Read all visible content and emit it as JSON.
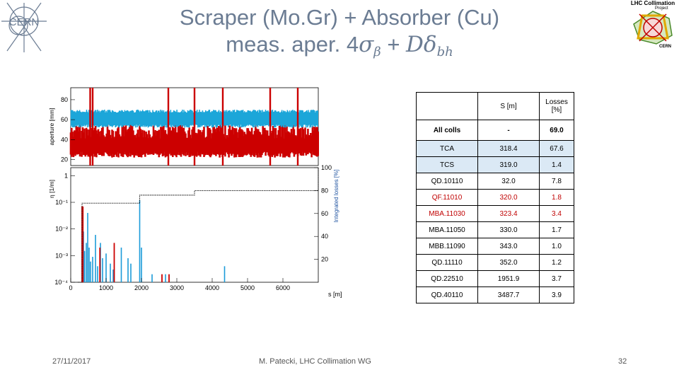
{
  "header": {
    "title_line1": "Scraper (Mo.Gr) + Absorber (Cu)",
    "title_line2": "meas. aper. 4",
    "title_math_sigma": "σ",
    "title_math_beta": "β",
    "title_math_plus": " + ",
    "title_math_D": "Dδ",
    "title_math_bh": "bh"
  },
  "logos": {
    "cern": "CERN",
    "collimation_line1": "LHC Collimation",
    "collimation_line2": "Project",
    "collimation_line3": "CERN"
  },
  "chart_data": [
    {
      "type": "line",
      "panel": "top",
      "ylabel": "aperture [mm]",
      "y_ticks": [
        20,
        40,
        60,
        80
      ],
      "ylim": [
        14,
        92
      ],
      "xlim": [
        0,
        7000
      ],
      "series": [
        {
          "color": "#1ca6d9",
          "description_note": "",
          "band": [
            52,
            70
          ]
        },
        {
          "color": "#cc0000",
          "band": [
            22,
            55
          ]
        }
      ],
      "vertical_spikes_red_x": [
        550,
        620,
        2760,
        3500,
        4300,
        5640,
        6420
      ]
    },
    {
      "type": "bar",
      "panel": "bottom",
      "ylabel": "η [1/m]",
      "y2label": "Integrated losses [%]",
      "xlabel": "s [m]",
      "x_ticks": [
        0,
        1000,
        2000,
        3000,
        4000,
        5000,
        6000
      ],
      "y_ticks": [
        "1",
        "10⁻¹",
        "10⁻²",
        "10⁻³",
        "10⁻⁴"
      ],
      "y2_ticks": [
        "100",
        "80",
        "60",
        "40",
        "20"
      ],
      "ylim": [
        0.0001,
        2
      ],
      "y2lim": [
        0,
        100
      ],
      "xlim": [
        0,
        7000
      ],
      "bars_blue": [
        {
          "x": 330,
          "v": 0.05
        },
        {
          "x": 360,
          "v": 0.008
        },
        {
          "x": 390,
          "v": 0.0015
        },
        {
          "x": 440,
          "v": 0.003
        },
        {
          "x": 480,
          "v": 0.04
        },
        {
          "x": 520,
          "v": 0.002
        },
        {
          "x": 560,
          "v": 0.0006
        },
        {
          "x": 620,
          "v": 0.0009
        },
        {
          "x": 700,
          "v": 0.006
        },
        {
          "x": 760,
          "v": 0.0004
        },
        {
          "x": 840,
          "v": 0.003
        },
        {
          "x": 900,
          "v": 0.0008
        },
        {
          "x": 1000,
          "v": 0.0012
        },
        {
          "x": 1120,
          "v": 0.0005
        },
        {
          "x": 1200,
          "v": 0.0003
        },
        {
          "x": 1430,
          "v": 0.002
        },
        {
          "x": 1620,
          "v": 0.0008
        },
        {
          "x": 1700,
          "v": 0.0005
        },
        {
          "x": 1950,
          "v": 0.12
        },
        {
          "x": 2000,
          "v": 0.002
        },
        {
          "x": 2300,
          "v": 0.0002
        },
        {
          "x": 2680,
          "v": 0.0002
        },
        {
          "x": 4350,
          "v": 0.0004
        }
      ],
      "bars_red": [
        {
          "x": 320,
          "v": 0.07
        },
        {
          "x": 345,
          "v": 0.07
        },
        {
          "x": 825,
          "v": 0.002
        },
        {
          "x": 1230,
          "v": 0.003
        },
        {
          "x": 2580,
          "v": 0.0002
        },
        {
          "x": 2780,
          "v": 0.0002
        }
      ],
      "integrated_losses": [
        {
          "x": 200,
          "y": 0
        },
        {
          "x": 320,
          "y": 69
        },
        {
          "x": 1950,
          "y": 76
        },
        {
          "x": 3500,
          "y": 80
        },
        {
          "x": 7000,
          "y": 100
        }
      ]
    }
  ],
  "table": {
    "headers": [
      "",
      "S [m]",
      "Losses [%]"
    ],
    "rows": [
      {
        "name": "All colls",
        "s": "-",
        "loss": "69.0",
        "style": "bold"
      },
      {
        "name": "TCA",
        "s": "318.4",
        "loss": "67.6",
        "style": "shade"
      },
      {
        "name": "TCS",
        "s": "319.0",
        "loss": "1.4",
        "style": "shade"
      },
      {
        "name": "QD.10110",
        "s": "32.0",
        "loss": "7.8",
        "style": ""
      },
      {
        "name": "QF.11010",
        "s": "320.0",
        "loss": "1.8",
        "style": "red"
      },
      {
        "name": "MBA.11030",
        "s": "323.4",
        "loss": "3.4",
        "style": "red"
      },
      {
        "name": "MBA.11050",
        "s": "330.0",
        "loss": "1.7",
        "style": ""
      },
      {
        "name": "MBB.11090",
        "s": "343.0",
        "loss": "1.0",
        "style": ""
      },
      {
        "name": "QD.11110",
        "s": "352.0",
        "loss": "1.2",
        "style": ""
      },
      {
        "name": "QD.22510",
        "s": "1951.9",
        "loss": "3.7",
        "style": ""
      },
      {
        "name": "QD.40110",
        "s": "3487.7",
        "loss": "3.9",
        "style": ""
      }
    ]
  },
  "footer": {
    "date": "27/11/2017",
    "author": "M. Patecki, LHC Collimation WG",
    "page": "32"
  }
}
